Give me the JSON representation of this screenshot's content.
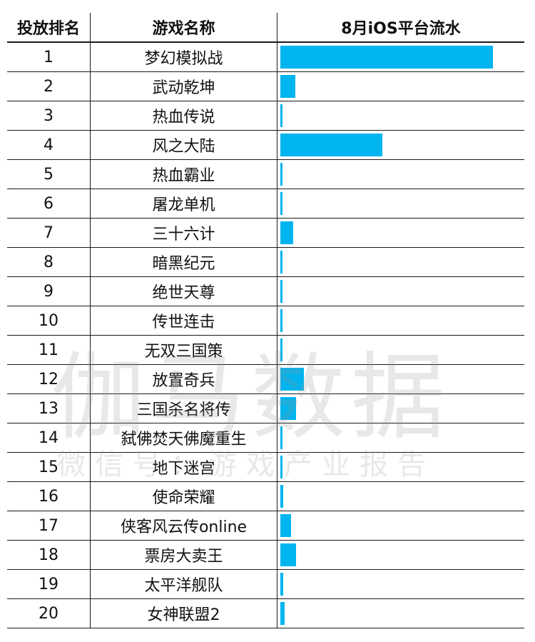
{
  "headers": {
    "rank": "投放排名",
    "name": "游戏名称",
    "value": "8月iOS平台流水"
  },
  "watermark": {
    "main": "伽马数据",
    "sub": "微信号：游戏产业报告"
  },
  "colors": {
    "bar": "#00b4ef",
    "grid": "#1a1a1a"
  },
  "chart_data": {
    "type": "bar",
    "orientation": "horizontal",
    "value_label": "8月iOS平台流水",
    "value_unit": "relative (no axis printed)",
    "max_value": 100,
    "rows": [
      {
        "rank": "1",
        "name": "梦幻模拟战",
        "value": 100
      },
      {
        "rank": "2",
        "name": "武动乾坤",
        "value": 7
      },
      {
        "rank": "3",
        "name": "热血传说",
        "value": 1
      },
      {
        "rank": "4",
        "name": "风之大陆",
        "value": 48
      },
      {
        "rank": "5",
        "name": "热血霸业",
        "value": 1
      },
      {
        "rank": "6",
        "name": "屠龙单机",
        "value": 1
      },
      {
        "rank": "7",
        "name": "三十六计",
        "value": 6
      },
      {
        "rank": "8",
        "name": "暗黑纪元",
        "value": 1
      },
      {
        "rank": "9",
        "name": "绝世天尊",
        "value": 1
      },
      {
        "rank": "10",
        "name": "传世连击",
        "value": 1
      },
      {
        "rank": "11",
        "name": "无双三国策",
        "value": 1
      },
      {
        "rank": "12",
        "name": "放置奇兵",
        "value": 11
      },
      {
        "rank": "13",
        "name": "三国杀名将传",
        "value": 7.5
      },
      {
        "rank": "14",
        "name": "弑佛焚天佛魔重生",
        "value": 1
      },
      {
        "rank": "15",
        "name": "地下迷宫",
        "value": 1
      },
      {
        "rank": "16",
        "name": "使命荣耀",
        "value": 1.5
      },
      {
        "rank": "17",
        "name": "侠客风云传online",
        "value": 5
      },
      {
        "rank": "18",
        "name": "票房大卖王",
        "value": 7.5
      },
      {
        "rank": "19",
        "name": "太平洋舰队",
        "value": 1.2
      },
      {
        "rank": "20",
        "name": "女神联盟2",
        "value": 2
      }
    ]
  }
}
